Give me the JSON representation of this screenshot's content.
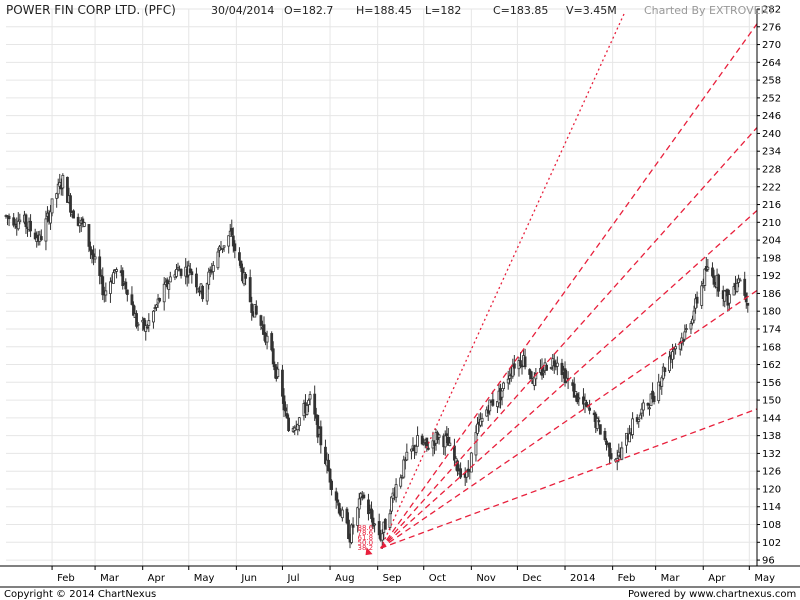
{
  "header": {
    "title": "POWER FIN CORP LTD. (PFC)",
    "date": "30/04/2014",
    "open": "O=182.7",
    "high": "H=188.45",
    "low": "L=182",
    "close": "C=183.85",
    "volume": "V=3.45M",
    "charted_by": "Charted By EXTROVERT"
  },
  "footer": {
    "copyright": "Copyright © 2014 ChartNexus",
    "powered_by": "Powered by www.chartnexus.com"
  },
  "colors": {
    "candle": "#333333",
    "fan_lines": "#e8203c",
    "grid": "#e6e6e6",
    "brand": "#999999"
  },
  "chart_data": {
    "type": "line",
    "subtype": "candlestick with fan lines",
    "title": "POWER FIN CORP LTD. (PFC)",
    "ylim": [
      94,
      282
    ],
    "yticks": [
      96,
      102,
      108,
      114,
      120,
      126,
      132,
      138,
      144,
      150,
      156,
      162,
      168,
      174,
      180,
      186,
      192,
      198,
      204,
      210,
      216,
      222,
      228,
      234,
      240,
      246,
      252,
      258,
      264,
      270,
      276,
      282
    ],
    "x_range": [
      "2013-01-02",
      "2014-05-06"
    ],
    "month_ticks": [
      {
        "label": "Feb",
        "date": "2013-02-01"
      },
      {
        "label": "Mar",
        "date": "2013-03-01"
      },
      {
        "label": "Apr",
        "date": "2013-04-01"
      },
      {
        "label": "May",
        "date": "2013-05-01"
      },
      {
        "label": "Jun",
        "date": "2013-06-01"
      },
      {
        "label": "Jul",
        "date": "2013-07-01"
      },
      {
        "label": "Aug",
        "date": "2013-08-01"
      },
      {
        "label": "Sep",
        "date": "2013-09-01"
      },
      {
        "label": "Oct",
        "date": "2013-10-01"
      },
      {
        "label": "Nov",
        "date": "2013-11-01"
      },
      {
        "label": "Dec",
        "date": "2013-12-01"
      },
      {
        "label": "2014",
        "date": "2014-01-01"
      },
      {
        "label": "Feb",
        "date": "2014-02-01"
      },
      {
        "label": "Mar",
        "date": "2014-03-01"
      },
      {
        "label": "Apr",
        "date": "2014-04-01"
      },
      {
        "label": "May",
        "date": "2014-05-01"
      }
    ],
    "price_path": [
      {
        "date": "2013-01-02",
        "price": 212
      },
      {
        "date": "2013-01-14",
        "price": 210
      },
      {
        "date": "2013-01-24",
        "price": 204
      },
      {
        "date": "2013-02-04",
        "price": 220
      },
      {
        "date": "2013-02-08",
        "price": 224
      },
      {
        "date": "2013-02-14",
        "price": 214
      },
      {
        "date": "2013-02-22",
        "price": 208
      },
      {
        "date": "2013-03-01",
        "price": 196
      },
      {
        "date": "2013-03-07",
        "price": 186
      },
      {
        "date": "2013-03-14",
        "price": 194
      },
      {
        "date": "2013-03-22",
        "price": 188
      },
      {
        "date": "2013-03-28",
        "price": 176
      },
      {
        "date": "2013-04-03",
        "price": 174
      },
      {
        "date": "2013-04-12",
        "price": 184
      },
      {
        "date": "2013-04-22",
        "price": 194
      },
      {
        "date": "2013-05-02",
        "price": 194
      },
      {
        "date": "2013-05-10",
        "price": 186
      },
      {
        "date": "2013-05-20",
        "price": 200
      },
      {
        "date": "2013-05-28",
        "price": 206
      },
      {
        "date": "2013-06-04",
        "price": 194
      },
      {
        "date": "2013-06-11",
        "price": 182
      },
      {
        "date": "2013-06-20",
        "price": 172
      },
      {
        "date": "2013-06-28",
        "price": 158
      },
      {
        "date": "2013-07-05",
        "price": 140
      },
      {
        "date": "2013-07-12",
        "price": 144
      },
      {
        "date": "2013-07-19",
        "price": 150
      },
      {
        "date": "2013-07-26",
        "price": 136
      },
      {
        "date": "2013-08-01",
        "price": 124
      },
      {
        "date": "2013-08-08",
        "price": 112
      },
      {
        "date": "2013-08-14",
        "price": 104
      },
      {
        "date": "2013-08-22",
        "price": 118
      },
      {
        "date": "2013-08-28",
        "price": 110
      },
      {
        "date": "2013-09-03",
        "price": 104
      },
      {
        "date": "2013-09-06",
        "price": 108
      },
      {
        "date": "2013-09-12",
        "price": 120
      },
      {
        "date": "2013-09-20",
        "price": 130
      },
      {
        "date": "2013-09-27",
        "price": 136
      },
      {
        "date": "2013-10-03",
        "price": 134
      },
      {
        "date": "2013-10-10",
        "price": 138
      },
      {
        "date": "2013-10-16",
        "price": 136
      },
      {
        "date": "2013-10-22",
        "price": 128
      },
      {
        "date": "2013-10-29",
        "price": 124
      },
      {
        "date": "2013-11-05",
        "price": 140
      },
      {
        "date": "2013-11-12",
        "price": 148
      },
      {
        "date": "2013-11-20",
        "price": 152
      },
      {
        "date": "2013-11-28",
        "price": 162
      },
      {
        "date": "2013-12-05",
        "price": 164
      },
      {
        "date": "2013-12-12",
        "price": 156
      },
      {
        "date": "2013-12-20",
        "price": 162
      },
      {
        "date": "2013-12-27",
        "price": 164
      },
      {
        "date": "2014-01-03",
        "price": 156
      },
      {
        "date": "2014-01-10",
        "price": 150
      },
      {
        "date": "2014-01-17",
        "price": 146
      },
      {
        "date": "2014-01-24",
        "price": 140
      },
      {
        "date": "2014-01-31",
        "price": 132
      },
      {
        "date": "2014-02-06",
        "price": 131
      },
      {
        "date": "2014-02-12",
        "price": 140
      },
      {
        "date": "2014-02-20",
        "price": 146
      },
      {
        "date": "2014-02-28",
        "price": 152
      },
      {
        "date": "2014-03-06",
        "price": 160
      },
      {
        "date": "2014-03-13",
        "price": 168
      },
      {
        "date": "2014-03-20",
        "price": 172
      },
      {
        "date": "2014-03-27",
        "price": 182
      },
      {
        "date": "2014-04-03",
        "price": 194
      },
      {
        "date": "2014-04-10",
        "price": 190
      },
      {
        "date": "2014-04-17",
        "price": 184
      },
      {
        "date": "2014-04-24",
        "price": 192
      },
      {
        "date": "2014-04-30",
        "price": 184
      }
    ],
    "fan_origin": {
      "date": "2013-08-28",
      "price": 98
    },
    "fan_pivot": {
      "date": "2013-09-03",
      "price": 100
    },
    "fan_lines": [
      {
        "style": "dotted",
        "end": {
          "date": "2014-02-09",
          "price": 281
        }
      },
      {
        "style": "dashed",
        "end": {
          "date": "2014-05-06",
          "price": 277
        }
      },
      {
        "style": "dashed",
        "end": {
          "date": "2014-05-06",
          "price": 242
        }
      },
      {
        "style": "dashed",
        "end": {
          "date": "2014-05-06",
          "price": 214
        }
      },
      {
        "style": "dashed",
        "end": {
          "date": "2014-05-06",
          "price": 187
        }
      },
      {
        "style": "dashed",
        "end": {
          "date": "2014-05-06",
          "price": 147
        }
      }
    ],
    "fan_labels": [
      "88.6",
      "78.6",
      "61.8",
      "50.0",
      "38.2"
    ]
  }
}
